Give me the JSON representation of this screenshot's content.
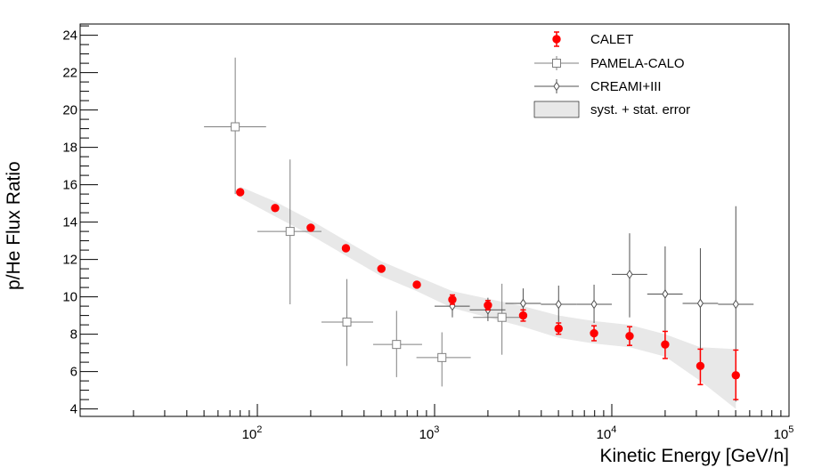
{
  "chart_data": {
    "type": "scatter",
    "title": "",
    "xlabel": "Kinetic Energy [GeV/n]",
    "ylabel": "p/He Flux Ratio",
    "xscale": "log",
    "xlim": [
      10,
      100000
    ],
    "ylim": [
      3.6,
      24.6
    ],
    "x_tick_labels": [
      {
        "value": 100,
        "base": "10",
        "exp": "2"
      },
      {
        "value": 1000,
        "base": "10",
        "exp": "3"
      },
      {
        "value": 10000,
        "base": "10",
        "exp": "4"
      },
      {
        "value": 100000,
        "base": "10",
        "exp": "5"
      }
    ],
    "y_ticks": [
      4,
      6,
      8,
      10,
      12,
      14,
      16,
      18,
      20,
      22,
      24
    ],
    "grid": false,
    "legend_position": "top-right",
    "band": {
      "name": "syst. + stat. error",
      "color": "#e8e8e8",
      "points": [
        {
          "x": 80,
          "lo": 15.3,
          "hi": 15.9
        },
        {
          "x": 126,
          "lo": 14.3,
          "hi": 15.1
        },
        {
          "x": 200,
          "lo": 13.3,
          "hi": 14.1
        },
        {
          "x": 316,
          "lo": 12.2,
          "hi": 13.0
        },
        {
          "x": 501,
          "lo": 11.1,
          "hi": 11.9
        },
        {
          "x": 794,
          "lo": 10.3,
          "hi": 11.1
        },
        {
          "x": 1260,
          "lo": 9.4,
          "hi": 10.3
        },
        {
          "x": 2000,
          "lo": 8.9,
          "hi": 9.9
        },
        {
          "x": 3160,
          "lo": 8.4,
          "hi": 9.5
        },
        {
          "x": 5010,
          "lo": 7.8,
          "hi": 9.0
        },
        {
          "x": 7940,
          "lo": 7.5,
          "hi": 8.7
        },
        {
          "x": 12600,
          "lo": 7.3,
          "hi": 8.5
        },
        {
          "x": 20000,
          "lo": 6.8,
          "hi": 8.0
        },
        {
          "x": 31600,
          "lo": 5.5,
          "hi": 7.3
        },
        {
          "x": 50100,
          "lo": 4.0,
          "hi": 7.2
        }
      ]
    },
    "series": [
      {
        "name": "CALET",
        "color": "#ff0000",
        "marker": "filled-circle",
        "points": [
          {
            "x": 80,
            "y": 15.6,
            "ylo": 15.6,
            "yhi": 15.6
          },
          {
            "x": 126,
            "y": 14.75,
            "ylo": 14.75,
            "yhi": 14.75
          },
          {
            "x": 200,
            "y": 13.7,
            "ylo": 13.7,
            "yhi": 13.7
          },
          {
            "x": 316,
            "y": 12.6,
            "ylo": 12.6,
            "yhi": 12.6
          },
          {
            "x": 501,
            "y": 11.5,
            "ylo": 11.5,
            "yhi": 11.5
          },
          {
            "x": 794,
            "y": 10.65,
            "ylo": 10.65,
            "yhi": 10.65
          },
          {
            "x": 1260,
            "y": 9.85,
            "ylo": 9.6,
            "yhi": 10.1
          },
          {
            "x": 2000,
            "y": 9.55,
            "ylo": 9.3,
            "yhi": 9.8
          },
          {
            "x": 3160,
            "y": 9.0,
            "ylo": 8.7,
            "yhi": 9.3
          },
          {
            "x": 5010,
            "y": 8.3,
            "ylo": 8.0,
            "yhi": 8.6
          },
          {
            "x": 7940,
            "y": 8.05,
            "ylo": 7.65,
            "yhi": 8.45
          },
          {
            "x": 12600,
            "y": 7.9,
            "ylo": 7.4,
            "yhi": 8.4
          },
          {
            "x": 20000,
            "y": 7.45,
            "ylo": 6.7,
            "yhi": 8.15
          },
          {
            "x": 31600,
            "y": 6.3,
            "ylo": 5.3,
            "yhi": 7.2
          },
          {
            "x": 50100,
            "y": 5.8,
            "ylo": 4.5,
            "yhi": 7.15
          }
        ]
      },
      {
        "name": "PAMELA-CALO",
        "color": "#808080",
        "marker": "open-square",
        "points": [
          {
            "x": 75,
            "y": 19.1,
            "ylo": 15.5,
            "yhi": 22.8,
            "xlo": 50,
            "xhi": 112
          },
          {
            "x": 153,
            "y": 13.5,
            "ylo": 9.6,
            "yhi": 17.35,
            "xlo": 100,
            "xhi": 230
          },
          {
            "x": 320,
            "y": 8.65,
            "ylo": 6.3,
            "yhi": 10.95,
            "xlo": 230,
            "xhi": 450
          },
          {
            "x": 610,
            "y": 7.45,
            "ylo": 5.7,
            "yhi": 9.25,
            "xlo": 450,
            "xhi": 850
          },
          {
            "x": 1100,
            "y": 6.75,
            "ylo": 5.2,
            "yhi": 8.1,
            "xlo": 790,
            "xhi": 1600
          },
          {
            "x": 2400,
            "y": 8.9,
            "ylo": 6.9,
            "yhi": 10.7,
            "xlo": 1650,
            "xhi": 3200
          }
        ]
      },
      {
        "name": "CREAMI+III",
        "color": "#505050",
        "marker": "open-diamond",
        "points": [
          {
            "x": 1260,
            "y": 9.5,
            "ylo": 8.9,
            "yhi": 10.1,
            "xlo": 1000,
            "xhi": 1580
          },
          {
            "x": 2000,
            "y": 9.3,
            "ylo": 8.7,
            "yhi": 9.95,
            "xlo": 1580,
            "xhi": 2510
          },
          {
            "x": 3160,
            "y": 9.65,
            "ylo": 8.9,
            "yhi": 10.45,
            "xlo": 2510,
            "xhi": 3980
          },
          {
            "x": 5010,
            "y": 9.6,
            "ylo": 8.65,
            "yhi": 10.6,
            "xlo": 3980,
            "xhi": 6310
          },
          {
            "x": 7940,
            "y": 9.6,
            "ylo": 8.6,
            "yhi": 10.65,
            "xlo": 6310,
            "xhi": 10000
          },
          {
            "x": 12600,
            "y": 11.2,
            "ylo": 8.9,
            "yhi": 13.4,
            "xlo": 10000,
            "xhi": 15850
          },
          {
            "x": 20000,
            "y": 10.15,
            "ylo": 7.6,
            "yhi": 12.7,
            "xlo": 15850,
            "xhi": 25100
          },
          {
            "x": 31600,
            "y": 9.65,
            "ylo": 6.6,
            "yhi": 12.6,
            "xlo": 25100,
            "xhi": 39800
          },
          {
            "x": 50100,
            "y": 9.6,
            "ylo": 4.4,
            "yhi": 14.85,
            "xlo": 39800,
            "xhi": 63100
          }
        ]
      }
    ]
  }
}
